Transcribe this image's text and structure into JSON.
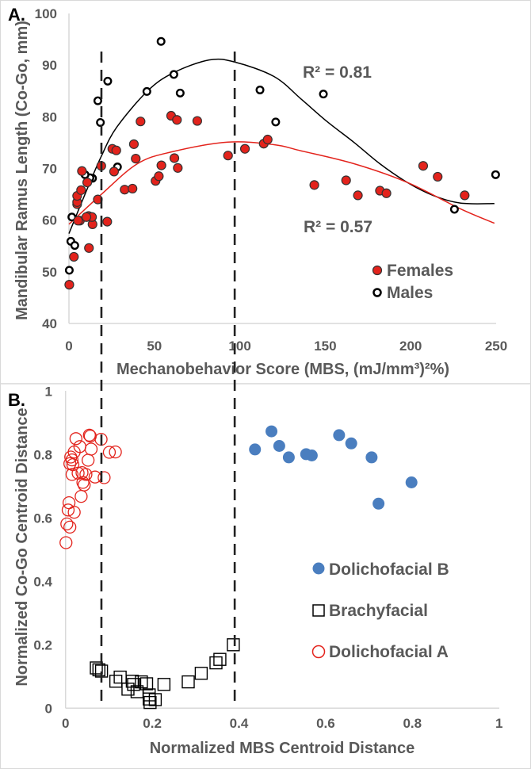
{
  "chart_data": [
    {
      "type": "scatter",
      "panel_label": "A.",
      "xlabel": "Mechanobehavior Score (MBS, (mJ/mm³)²%)",
      "ylabel": "Mandibular Ramus Length (Co-Go, mm)",
      "xlim": [
        0,
        250
      ],
      "ylim": [
        40,
        100
      ],
      "xticks": [
        "0",
        "50",
        "100",
        "150",
        "200",
        "250"
      ],
      "yticks": [
        "40",
        "50",
        "60",
        "70",
        "80",
        "90",
        "100"
      ],
      "grid": false,
      "legend": "right",
      "reference_lines_x": [
        19,
        97
      ],
      "series": [
        {
          "name": "Females",
          "marker": "filled-circle",
          "color": "#e3231c",
          "points": [
            [
              0.2,
              47.5
            ],
            [
              2.9,
              52.9
            ],
            [
              11.7,
              54.6
            ],
            [
              22.4,
              59.7
            ],
            [
              13.8,
              59.2
            ],
            [
              6.4,
              59.9
            ],
            [
              5.3,
              59.9
            ],
            [
              11.5,
              60.8
            ],
            [
              13.5,
              60.6
            ],
            [
              10.2,
              60.6
            ],
            [
              16.9,
              64
            ],
            [
              4.8,
              63.1
            ],
            [
              4.8,
              63.5
            ],
            [
              4.8,
              64.7
            ],
            [
              7.1,
              65.8
            ],
            [
              10.7,
              67.3
            ],
            [
              7.6,
              69.5
            ],
            [
              18.9,
              70.5
            ],
            [
              26.4,
              69.4
            ],
            [
              25.4,
              73.8
            ],
            [
              27.7,
              73.5
            ],
            [
              32.6,
              65.9
            ],
            [
              37.2,
              66.1
            ],
            [
              38,
              74.7
            ],
            [
              39.1,
              71.9
            ],
            [
              41.9,
              79.1
            ],
            [
              50.7,
              67.6
            ],
            [
              52.6,
              68.5
            ],
            [
              54.1,
              70.6
            ],
            [
              59.8,
              80.2
            ],
            [
              63.2,
              79.4
            ],
            [
              61.7,
              72
            ],
            [
              63.7,
              70.1
            ],
            [
              75.1,
              79.2
            ],
            [
              93.1,
              72.5
            ],
            [
              103,
              73.8
            ],
            [
              114,
              74.8
            ],
            [
              116.3,
              75.6
            ],
            [
              143.6,
              66.8
            ],
            [
              162.2,
              67.7
            ],
            [
              169.1,
              64.8
            ],
            [
              182,
              65.7
            ],
            [
              185.8,
              65.2
            ],
            [
              207.3,
              70.5
            ],
            [
              215.8,
              68.4
            ],
            [
              231.6,
              64.8
            ]
          ]
        },
        {
          "name": "Males",
          "marker": "open-circle",
          "color": "#000000",
          "points": [
            [
              53.9,
              94.6
            ],
            [
              22.7,
              86.9
            ],
            [
              16.9,
              83.1
            ],
            [
              18.4,
              78.9
            ],
            [
              45.6,
              84.9
            ],
            [
              61.4,
              88.2
            ],
            [
              65.1,
              84.6
            ],
            [
              111.8,
              85.2
            ],
            [
              121,
              79
            ],
            [
              28.4,
              70.3
            ],
            [
              13.8,
              68.1
            ],
            [
              12.3,
              68.2
            ],
            [
              9.4,
              68.8
            ],
            [
              1.7,
              60.6
            ],
            [
              1.1,
              55.9
            ],
            [
              3.4,
              55.1
            ],
            [
              0.2,
              50.3
            ],
            [
              148.9,
              84.4
            ],
            [
              225.6,
              62.1
            ],
            [
              249.7,
              68.8
            ]
          ]
        }
      ],
      "trendlines": [
        {
          "series": "Males",
          "label": "R² = 0.81",
          "color": "#000000",
          "points": [
            [
              0,
              57.4
            ],
            [
              10,
              65.5
            ],
            [
              19,
              72.4
            ],
            [
              28,
              78
            ],
            [
              46,
              85
            ],
            [
              61,
              88.5
            ],
            [
              82,
              91
            ],
            [
              97,
              90.6
            ],
            [
              120,
              87.8
            ],
            [
              136,
              83.4
            ],
            [
              151,
              79.1
            ],
            [
              167,
              75
            ],
            [
              182,
              70.9
            ],
            [
              198,
              67.3
            ],
            [
              213,
              64.8
            ],
            [
              229,
              63.3
            ],
            [
              249,
              63.2
            ]
          ]
        },
        {
          "series": "Females",
          "label": "R² = 0.57",
          "color": "#e3231c",
          "points": [
            [
              0,
              59.2
            ],
            [
              19,
              65
            ],
            [
              40,
              70.9
            ],
            [
              60,
              73.2
            ],
            [
              93,
              75.1
            ],
            [
              120,
              74.6
            ],
            [
              136,
              73.4
            ],
            [
              167,
              70.9
            ],
            [
              198,
              67.3
            ],
            [
              229,
              62.2
            ],
            [
              249,
              59.4
            ]
          ]
        }
      ]
    },
    {
      "type": "scatter",
      "panel_label": "B.",
      "xlabel": "Normalized MBS Centroid Distance",
      "ylabel": "Normalized Co-Go Centroid Distance",
      "xlim": [
        0,
        1
      ],
      "ylim": [
        0,
        1
      ],
      "xticks": [
        "0",
        "0.2",
        "0.4",
        "0.6",
        "0.8",
        "1"
      ],
      "yticks": [
        "0",
        "0.2",
        "0.4",
        "0.6",
        "0.8",
        "1"
      ],
      "grid": false,
      "legend": "right",
      "reference_lines_x": [
        0.083,
        0.389
      ],
      "series": [
        {
          "name": "Dolichofacial B",
          "marker": "filled-circle",
          "color": "#4a7ebf",
          "points": [
            [
              0.437,
              0.816
            ],
            [
              0.475,
              0.873
            ],
            [
              0.493,
              0.827
            ],
            [
              0.515,
              0.791
            ],
            [
              0.555,
              0.801
            ],
            [
              0.568,
              0.797
            ],
            [
              0.631,
              0.861
            ],
            [
              0.659,
              0.835
            ],
            [
              0.706,
              0.791
            ],
            [
              0.798,
              0.712
            ],
            [
              0.722,
              0.645
            ]
          ]
        },
        {
          "name": "Brachyfacial",
          "marker": "open-square",
          "color": "#000000",
          "points": [
            [
              0.071,
              0.127
            ],
            [
              0.077,
              0.121
            ],
            [
              0.083,
              0.117
            ],
            [
              0.116,
              0.085
            ],
            [
              0.126,
              0.098
            ],
            [
              0.154,
              0.085
            ],
            [
              0.157,
              0.075
            ],
            [
              0.175,
              0.083
            ],
            [
              0.187,
              0.077
            ],
            [
              0.144,
              0.06
            ],
            [
              0.165,
              0.052
            ],
            [
              0.193,
              0.042
            ],
            [
              0.193,
              0.029
            ],
            [
              0.207,
              0.027
            ],
            [
              0.195,
              0.018
            ],
            [
              0.227,
              0.075
            ],
            [
              0.283,
              0.083
            ],
            [
              0.313,
              0.11
            ],
            [
              0.347,
              0.143
            ],
            [
              0.356,
              0.154
            ],
            [
              0.387,
              0.2
            ]
          ]
        },
        {
          "name": "Dolichofacial A",
          "marker": "open-circle",
          "color": "#e3231c",
          "points": [
            [
              0.024,
              0.85
            ],
            [
              0.055,
              0.861
            ],
            [
              0.057,
              0.858
            ],
            [
              0.082,
              0.848
            ],
            [
              0.033,
              0.825
            ],
            [
              0.059,
              0.817
            ],
            [
              0.101,
              0.807
            ],
            [
              0.115,
              0.808
            ],
            [
              0.02,
              0.808
            ],
            [
              0.012,
              0.792
            ],
            [
              0.015,
              0.783
            ],
            [
              0.052,
              0.782
            ],
            [
              0.01,
              0.771
            ],
            [
              0.017,
              0.768
            ],
            [
              0.015,
              0.737
            ],
            [
              0.029,
              0.741
            ],
            [
              0.038,
              0.743
            ],
            [
              0.047,
              0.737
            ],
            [
              0.068,
              0.729
            ],
            [
              0.089,
              0.727
            ],
            [
              0.04,
              0.712
            ],
            [
              0.043,
              0.704
            ],
            [
              0.036,
              0.668
            ],
            [
              0.008,
              0.648
            ],
            [
              0.02,
              0.618
            ],
            [
              0.006,
              0.625
            ],
            [
              0.003,
              0.581
            ],
            [
              0.01,
              0.571
            ],
            [
              0.001,
              0.522
            ]
          ]
        }
      ]
    }
  ]
}
